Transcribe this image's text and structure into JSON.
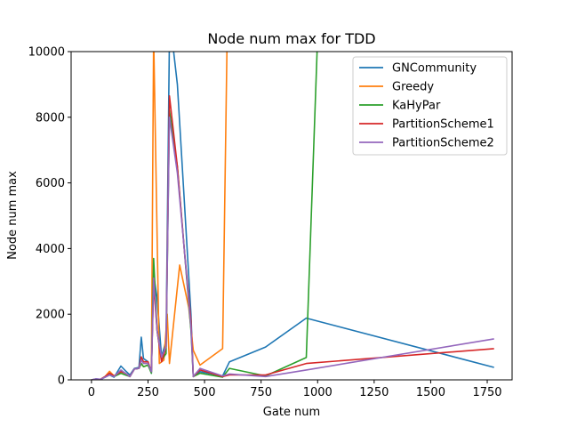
{
  "chart_data": {
    "type": "line",
    "title": "Node num max for TDD",
    "xlabel": "Gate num",
    "ylabel": "Node num max",
    "xlim": [
      -90,
      1860
    ],
    "ylim": [
      0,
      10000
    ],
    "xticks": [
      0,
      250,
      500,
      750,
      1000,
      1250,
      1500,
      1750
    ],
    "yticks": [
      0,
      2000,
      4000,
      6000,
      8000,
      10000
    ],
    "grid": false,
    "legend_position": "top-right",
    "series": [
      {
        "name": "GNCommunity",
        "color": "#1f77b4",
        "points": [
          [
            0,
            0
          ],
          [
            20,
            30
          ],
          [
            40,
            10
          ],
          [
            60,
            80
          ],
          [
            80,
            150
          ],
          [
            100,
            80
          ],
          [
            130,
            420
          ],
          [
            150,
            280
          ],
          [
            170,
            150
          ],
          [
            190,
            350
          ],
          [
            210,
            380
          ],
          [
            220,
            1300
          ],
          [
            230,
            650
          ],
          [
            250,
            550
          ],
          [
            265,
            200
          ],
          [
            275,
            3200
          ],
          [
            290,
            2500
          ],
          [
            310,
            700
          ],
          [
            330,
            1200
          ],
          [
            345,
            10500
          ],
          [
            355,
            10500
          ],
          [
            380,
            9000
          ],
          [
            410,
            5500
          ],
          [
            440,
            2000
          ],
          [
            450,
            100
          ],
          [
            480,
            250
          ],
          [
            580,
            120
          ],
          [
            610,
            550
          ],
          [
            770,
            1000
          ],
          [
            950,
            1880
          ],
          [
            1780,
            380
          ]
        ]
      },
      {
        "name": "Greedy",
        "color": "#ff7f0e",
        "points": [
          [
            0,
            0
          ],
          [
            20,
            20
          ],
          [
            40,
            20
          ],
          [
            60,
            100
          ],
          [
            80,
            260
          ],
          [
            100,
            120
          ],
          [
            130,
            250
          ],
          [
            150,
            200
          ],
          [
            170,
            100
          ],
          [
            190,
            330
          ],
          [
            210,
            350
          ],
          [
            220,
            500
          ],
          [
            230,
            400
          ],
          [
            250,
            450
          ],
          [
            265,
            300
          ],
          [
            275,
            10500
          ],
          [
            300,
            500
          ],
          [
            320,
            600
          ],
          [
            335,
            2000
          ],
          [
            345,
            500
          ],
          [
            390,
            3500
          ],
          [
            430,
            2200
          ],
          [
            450,
            900
          ],
          [
            480,
            450
          ],
          [
            580,
            950
          ],
          [
            600,
            10500
          ]
        ]
      },
      {
        "name": "KaHyPar",
        "color": "#2ca02c",
        "points": [
          [
            0,
            0
          ],
          [
            20,
            20
          ],
          [
            40,
            10
          ],
          [
            60,
            100
          ],
          [
            80,
            150
          ],
          [
            100,
            100
          ],
          [
            130,
            200
          ],
          [
            150,
            150
          ],
          [
            170,
            100
          ],
          [
            190,
            330
          ],
          [
            210,
            350
          ],
          [
            220,
            500
          ],
          [
            230,
            400
          ],
          [
            250,
            450
          ],
          [
            265,
            200
          ],
          [
            275,
            3700
          ],
          [
            290,
            1500
          ],
          [
            310,
            600
          ],
          [
            330,
            800
          ],
          [
            345,
            8200
          ],
          [
            380,
            6500
          ],
          [
            410,
            4000
          ],
          [
            440,
            1500
          ],
          [
            450,
            100
          ],
          [
            480,
            200
          ],
          [
            580,
            80
          ],
          [
            610,
            350
          ],
          [
            770,
            120
          ],
          [
            950,
            680
          ],
          [
            1000,
            10500
          ]
        ]
      },
      {
        "name": "PartitionScheme1",
        "color": "#d62728",
        "points": [
          [
            0,
            0
          ],
          [
            20,
            20
          ],
          [
            40,
            20
          ],
          [
            60,
            100
          ],
          [
            80,
            200
          ],
          [
            100,
            120
          ],
          [
            130,
            250
          ],
          [
            150,
            200
          ],
          [
            170,
            100
          ],
          [
            190,
            330
          ],
          [
            210,
            350
          ],
          [
            220,
            700
          ],
          [
            230,
            550
          ],
          [
            250,
            550
          ],
          [
            265,
            250
          ],
          [
            275,
            2900
          ],
          [
            290,
            1500
          ],
          [
            310,
            550
          ],
          [
            330,
            1000
          ],
          [
            345,
            8650
          ],
          [
            380,
            6500
          ],
          [
            410,
            4000
          ],
          [
            440,
            1800
          ],
          [
            450,
            100
          ],
          [
            480,
            300
          ],
          [
            580,
            100
          ],
          [
            610,
            150
          ],
          [
            770,
            150
          ],
          [
            950,
            500
          ],
          [
            1780,
            950
          ]
        ]
      },
      {
        "name": "PartitionScheme2",
        "color": "#9467bd",
        "points": [
          [
            0,
            0
          ],
          [
            20,
            30
          ],
          [
            40,
            20
          ],
          [
            60,
            80
          ],
          [
            80,
            150
          ],
          [
            100,
            100
          ],
          [
            130,
            300
          ],
          [
            150,
            200
          ],
          [
            170,
            100
          ],
          [
            190,
            330
          ],
          [
            210,
            350
          ],
          [
            220,
            600
          ],
          [
            230,
            500
          ],
          [
            250,
            500
          ],
          [
            265,
            250
          ],
          [
            275,
            3100
          ],
          [
            290,
            1500
          ],
          [
            310,
            700
          ],
          [
            330,
            1000
          ],
          [
            345,
            8000
          ],
          [
            380,
            6300
          ],
          [
            410,
            4000
          ],
          [
            440,
            1600
          ],
          [
            450,
            100
          ],
          [
            480,
            350
          ],
          [
            580,
            120
          ],
          [
            610,
            180
          ],
          [
            770,
            100
          ],
          [
            950,
            300
          ],
          [
            1780,
            1250
          ]
        ]
      }
    ]
  }
}
